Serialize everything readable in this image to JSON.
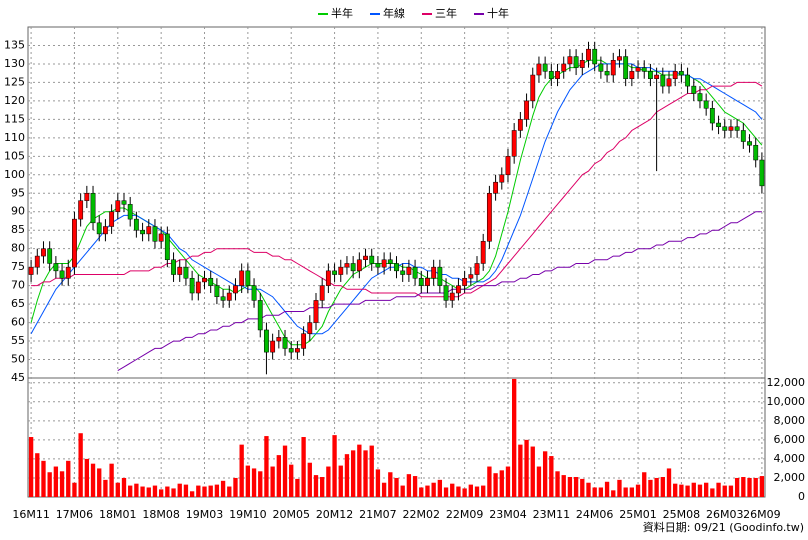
{
  "chart_data": {
    "type": "candlestick",
    "categories": [
      "16M11",
      null,
      null,
      null,
      null,
      null,
      null,
      "17M06",
      null,
      null,
      null,
      null,
      null,
      null,
      "18M01",
      null,
      null,
      null,
      null,
      null,
      null,
      "18M08",
      null,
      null,
      null,
      null,
      null,
      null,
      "19M03",
      null,
      null,
      null,
      null,
      null,
      null,
      "19M10",
      null,
      null,
      null,
      null,
      null,
      null,
      "20M05",
      null,
      null,
      null,
      null,
      null,
      null,
      "20M12",
      null,
      null,
      null,
      null,
      null,
      null,
      "21M07",
      null,
      null,
      null,
      null,
      null,
      null,
      "22M02",
      null,
      null,
      null,
      null,
      null,
      null,
      "22M09",
      null,
      null,
      null,
      null,
      null,
      null,
      "23M04",
      null,
      null,
      null,
      null,
      null,
      null,
      "23M11",
      null,
      null,
      null,
      null,
      null,
      null,
      "24M06",
      null,
      null,
      null,
      null,
      null,
      null,
      "25M01",
      null,
      null,
      null,
      null,
      null,
      null,
      "25M08",
      null,
      null,
      null,
      null,
      null,
      null,
      "26M03",
      null,
      null,
      null,
      null,
      null,
      "26M09"
    ],
    "open": [
      73,
      75,
      78,
      80,
      76,
      74,
      72,
      75,
      88,
      93,
      95,
      87,
      84,
      86,
      90,
      93,
      92,
      88,
      85,
      84,
      86,
      82,
      84,
      77,
      73,
      75,
      72,
      68,
      71,
      72,
      70,
      67,
      66,
      68,
      70,
      74,
      70,
      66,
      58,
      52,
      55,
      56,
      53,
      52,
      53,
      57,
      60,
      66,
      70,
      74,
      73,
      75,
      76,
      74,
      77,
      78,
      76,
      75,
      77,
      76,
      74,
      73,
      75,
      72,
      70,
      72,
      75,
      70,
      66,
      68,
      70,
      72,
      73,
      76,
      82,
      95,
      98,
      100,
      105,
      112,
      115,
      120,
      127,
      130,
      128,
      126,
      128,
      130,
      132,
      129,
      131,
      134,
      130,
      128,
      127,
      131,
      132,
      126,
      128,
      129,
      128,
      126,
      127,
      124,
      126,
      128,
      127,
      124,
      122,
      120,
      118,
      114,
      113,
      112,
      113,
      112,
      109,
      108,
      104
    ],
    "high": [
      77,
      80,
      82,
      82,
      78,
      76,
      77,
      90,
      95,
      97,
      97,
      89,
      88,
      92,
      95,
      95,
      94,
      90,
      87,
      88,
      88,
      86,
      86,
      79,
      77,
      77,
      74,
      73,
      74,
      74,
      72,
      69,
      70,
      72,
      76,
      76,
      72,
      68,
      60,
      57,
      58,
      58,
      55,
      55,
      59,
      62,
      68,
      72,
      76,
      76,
      77,
      78,
      78,
      79,
      80,
      80,
      78,
      79,
      79,
      78,
      76,
      77,
      77,
      74,
      74,
      77,
      77,
      72,
      70,
      72,
      74,
      75,
      78,
      84,
      97,
      100,
      102,
      107,
      114,
      117,
      122,
      129,
      132,
      132,
      130,
      130,
      132,
      134,
      134,
      133,
      136,
      136,
      132,
      130,
      133,
      134,
      134,
      130,
      131,
      131,
      130,
      129,
      129,
      128,
      130,
      130,
      129,
      126,
      124,
      122,
      120,
      116,
      115,
      115,
      115,
      114,
      111,
      110,
      106
    ],
    "low": [
      71,
      73,
      76,
      74,
      72,
      70,
      70,
      73,
      86,
      91,
      85,
      82,
      82,
      84,
      88,
      90,
      86,
      83,
      82,
      82,
      80,
      80,
      75,
      71,
      71,
      70,
      66,
      66,
      69,
      68,
      65,
      64,
      64,
      66,
      68,
      68,
      64,
      56,
      46,
      50,
      53,
      51,
      50,
      50,
      51,
      55,
      58,
      64,
      68,
      71,
      71,
      73,
      72,
      72,
      75,
      74,
      73,
      73,
      74,
      72,
      71,
      71,
      70,
      68,
      68,
      70,
      68,
      64,
      64,
      66,
      68,
      70,
      71,
      74,
      80,
      93,
      96,
      98,
      103,
      110,
      113,
      118,
      125,
      126,
      124,
      124,
      126,
      128,
      127,
      127,
      129,
      128,
      126,
      125,
      125,
      129,
      124,
      124,
      126,
      126,
      124,
      101,
      122,
      122,
      124,
      125,
      122,
      120,
      118,
      116,
      112,
      111,
      110,
      110,
      110,
      107,
      106,
      102,
      95
    ],
    "close": [
      75,
      78,
      80,
      76,
      74,
      72,
      75,
      88,
      93,
      95,
      87,
      84,
      86,
      90,
      93,
      92,
      88,
      85,
      84,
      86,
      82,
      84,
      77,
      73,
      75,
      72,
      68,
      71,
      72,
      70,
      67,
      66,
      68,
      70,
      74,
      70,
      66,
      58,
      52,
      55,
      56,
      53,
      52,
      53,
      57,
      60,
      66,
      70,
      74,
      73,
      75,
      76,
      74,
      77,
      78,
      76,
      75,
      77,
      76,
      74,
      73,
      75,
      72,
      70,
      72,
      75,
      70,
      66,
      68,
      70,
      72,
      73,
      76,
      82,
      95,
      98,
      100,
      105,
      112,
      115,
      120,
      127,
      130,
      128,
      126,
      128,
      130,
      132,
      129,
      131,
      134,
      130,
      128,
      127,
      131,
      132,
      126,
      128,
      129,
      128,
      126,
      127,
      124,
      126,
      128,
      127,
      124,
      122,
      120,
      118,
      114,
      113,
      112,
      113,
      112,
      109,
      108,
      104,
      97
    ],
    "up_color": "#ff0000",
    "down_color": "#00bb00",
    "series": [
      {
        "name": "半年",
        "color": "#00cc00",
        "values": [
          60,
          66,
          71,
          74,
          76,
          76,
          76,
          78,
          82,
          86,
          88,
          89,
          90,
          90,
          91,
          91,
          90,
          89,
          88,
          87,
          86,
          85,
          83,
          81,
          79,
          77,
          75,
          73,
          72,
          71,
          70,
          69,
          69,
          68,
          69,
          70,
          70,
          68,
          65,
          62,
          59,
          56,
          54,
          54,
          54,
          55,
          57,
          59,
          63,
          66,
          69,
          71,
          73,
          74,
          75,
          76,
          76,
          76,
          76,
          76,
          75,
          75,
          74,
          73,
          72,
          72,
          72,
          71,
          70,
          69,
          69,
          70,
          71,
          72,
          74,
          78,
          84,
          90,
          97,
          104,
          110,
          116,
          121,
          124,
          126,
          127,
          128,
          129,
          129,
          130,
          131,
          131,
          131,
          130,
          130,
          130,
          130,
          129,
          129,
          128,
          128,
          128,
          127,
          127,
          127,
          127,
          127,
          126,
          125,
          123,
          121,
          119,
          117,
          116,
          115,
          114,
          112,
          110,
          108
        ]
      },
      {
        "name": "年線",
        "color": "#0055ff",
        "values": [
          57,
          60,
          63,
          66,
          69,
          71,
          73,
          75,
          77,
          79,
          81,
          83,
          85,
          87,
          88,
          89,
          89,
          89,
          88,
          87,
          86,
          85,
          84,
          82,
          80,
          79,
          77,
          76,
          75,
          74,
          73,
          72,
          71,
          70,
          70,
          69,
          69,
          69,
          68,
          67,
          65,
          63,
          61,
          59,
          58,
          57,
          57,
          57,
          58,
          60,
          62,
          64,
          66,
          68,
          70,
          72,
          73,
          74,
          75,
          75,
          76,
          76,
          75,
          75,
          74,
          74,
          73,
          73,
          72,
          72,
          71,
          71,
          71,
          71,
          72,
          74,
          77,
          81,
          85,
          89,
          94,
          99,
          104,
          109,
          113,
          117,
          120,
          123,
          125,
          127,
          128,
          129,
          130,
          130,
          130,
          130,
          130,
          130,
          129,
          129,
          129,
          128,
          128,
          128,
          128,
          127,
          127,
          126,
          126,
          125,
          124,
          123,
          122,
          121,
          120,
          119,
          118,
          117,
          115
        ]
      },
      {
        "name": "三年",
        "color": "#dd0066",
        "values": [
          70,
          70,
          71,
          71,
          72,
          72,
          72,
          73,
          73,
          73,
          73,
          73,
          73,
          73,
          73,
          73,
          74,
          74,
          74,
          74,
          75,
          75,
          76,
          76,
          77,
          77,
          78,
          78,
          79,
          79,
          80,
          80,
          80,
          80,
          80,
          80,
          79,
          79,
          79,
          78,
          78,
          77,
          77,
          76,
          75,
          74,
          73,
          72,
          71,
          70,
          70,
          69,
          69,
          69,
          69,
          68,
          68,
          68,
          68,
          68,
          68,
          68,
          68,
          67,
          67,
          67,
          67,
          67,
          67,
          67,
          68,
          68,
          69,
          70,
          71,
          72,
          74,
          76,
          78,
          80,
          82,
          84,
          86,
          88,
          90,
          92,
          94,
          96,
          98,
          100,
          101,
          103,
          104,
          106,
          107,
          109,
          110,
          112,
          113,
          114,
          115,
          117,
          118,
          119,
          120,
          121,
          122,
          122,
          123,
          123,
          124,
          124,
          124,
          124,
          125,
          125,
          125,
          125,
          124
        ]
      },
      {
        "name": "十年",
        "color": "#7700aa",
        "values": [
          null,
          null,
          null,
          null,
          null,
          null,
          null,
          null,
          null,
          null,
          null,
          null,
          null,
          null,
          47,
          48,
          49,
          50,
          51,
          52,
          53,
          53,
          54,
          55,
          55,
          56,
          56,
          57,
          57,
          58,
          58,
          59,
          59,
          60,
          60,
          61,
          61,
          61,
          62,
          62,
          62,
          63,
          63,
          63,
          63,
          64,
          64,
          64,
          64,
          65,
          65,
          65,
          65,
          65,
          66,
          66,
          66,
          66,
          66,
          67,
          67,
          67,
          67,
          68,
          68,
          68,
          68,
          68,
          69,
          69,
          69,
          69,
          70,
          70,
          70,
          70,
          71,
          71,
          71,
          72,
          72,
          73,
          73,
          74,
          74,
          75,
          75,
          75,
          76,
          76,
          76,
          77,
          77,
          77,
          78,
          78,
          79,
          79,
          80,
          80,
          80,
          81,
          81,
          82,
          82,
          82,
          83,
          83,
          84,
          84,
          85,
          85,
          86,
          87,
          87,
          88,
          89,
          90,
          90
        ]
      }
    ],
    "volume": {
      "color": "#ff0000",
      "values": [
        6300,
        4600,
        3800,
        2600,
        3200,
        2700,
        3800,
        1500,
        6700,
        4000,
        3500,
        3000,
        1800,
        3500,
        1500,
        2000,
        1200,
        1400,
        1100,
        1000,
        1200,
        800,
        1100,
        900,
        1400,
        1300,
        600,
        1200,
        1100,
        1200,
        1300,
        1700,
        1100,
        2000,
        5500,
        3300,
        3000,
        2700,
        6400,
        3200,
        4400,
        5400,
        3400,
        1900,
        6300,
        3600,
        2300,
        2100,
        3200,
        6500,
        3300,
        4500,
        4900,
        5500,
        4900,
        5400,
        2900,
        1500,
        2600,
        2000,
        1200,
        2400,
        2200,
        1000,
        1200,
        1500,
        1800,
        1000,
        1400,
        1100,
        900,
        1300,
        1100,
        1200,
        3200,
        2500,
        2800,
        3200,
        12400,
        5500,
        6000,
        5300,
        3200,
        4800,
        4300,
        2700,
        2300,
        2100,
        2100,
        1900,
        1500,
        1000,
        1000,
        1600,
        700,
        1800,
        1000,
        1000,
        1300,
        2600,
        1800,
        2000,
        2100,
        3000,
        1400,
        1300,
        1200,
        1500,
        1300,
        1500,
        900,
        1500,
        1200,
        1200,
        2000,
        2100,
        2000,
        2000,
        2200
      ]
    },
    "ylim": [
      45,
      140
    ],
    "yticks": [
      45,
      50,
      55,
      60,
      65,
      70,
      75,
      80,
      85,
      90,
      95,
      100,
      105,
      110,
      115,
      120,
      125,
      130,
      135
    ],
    "y2lim": [
      0,
      12500
    ],
    "y2ticks": [
      0,
      {
        "value": 2000,
        "label": "2,000"
      },
      {
        "value": 4000,
        "label": "4,000"
      },
      {
        "value": 6000,
        "label": "6,000"
      },
      {
        "value": 8000,
        "label": "8,000"
      },
      {
        "value": 10000,
        "label": "10,000"
      },
      {
        "value": 12000,
        "label": "12,000"
      }
    ],
    "grid": true,
    "legend": "top",
    "note": "資料日期: 09/21 (Goodinfo.tw)"
  }
}
